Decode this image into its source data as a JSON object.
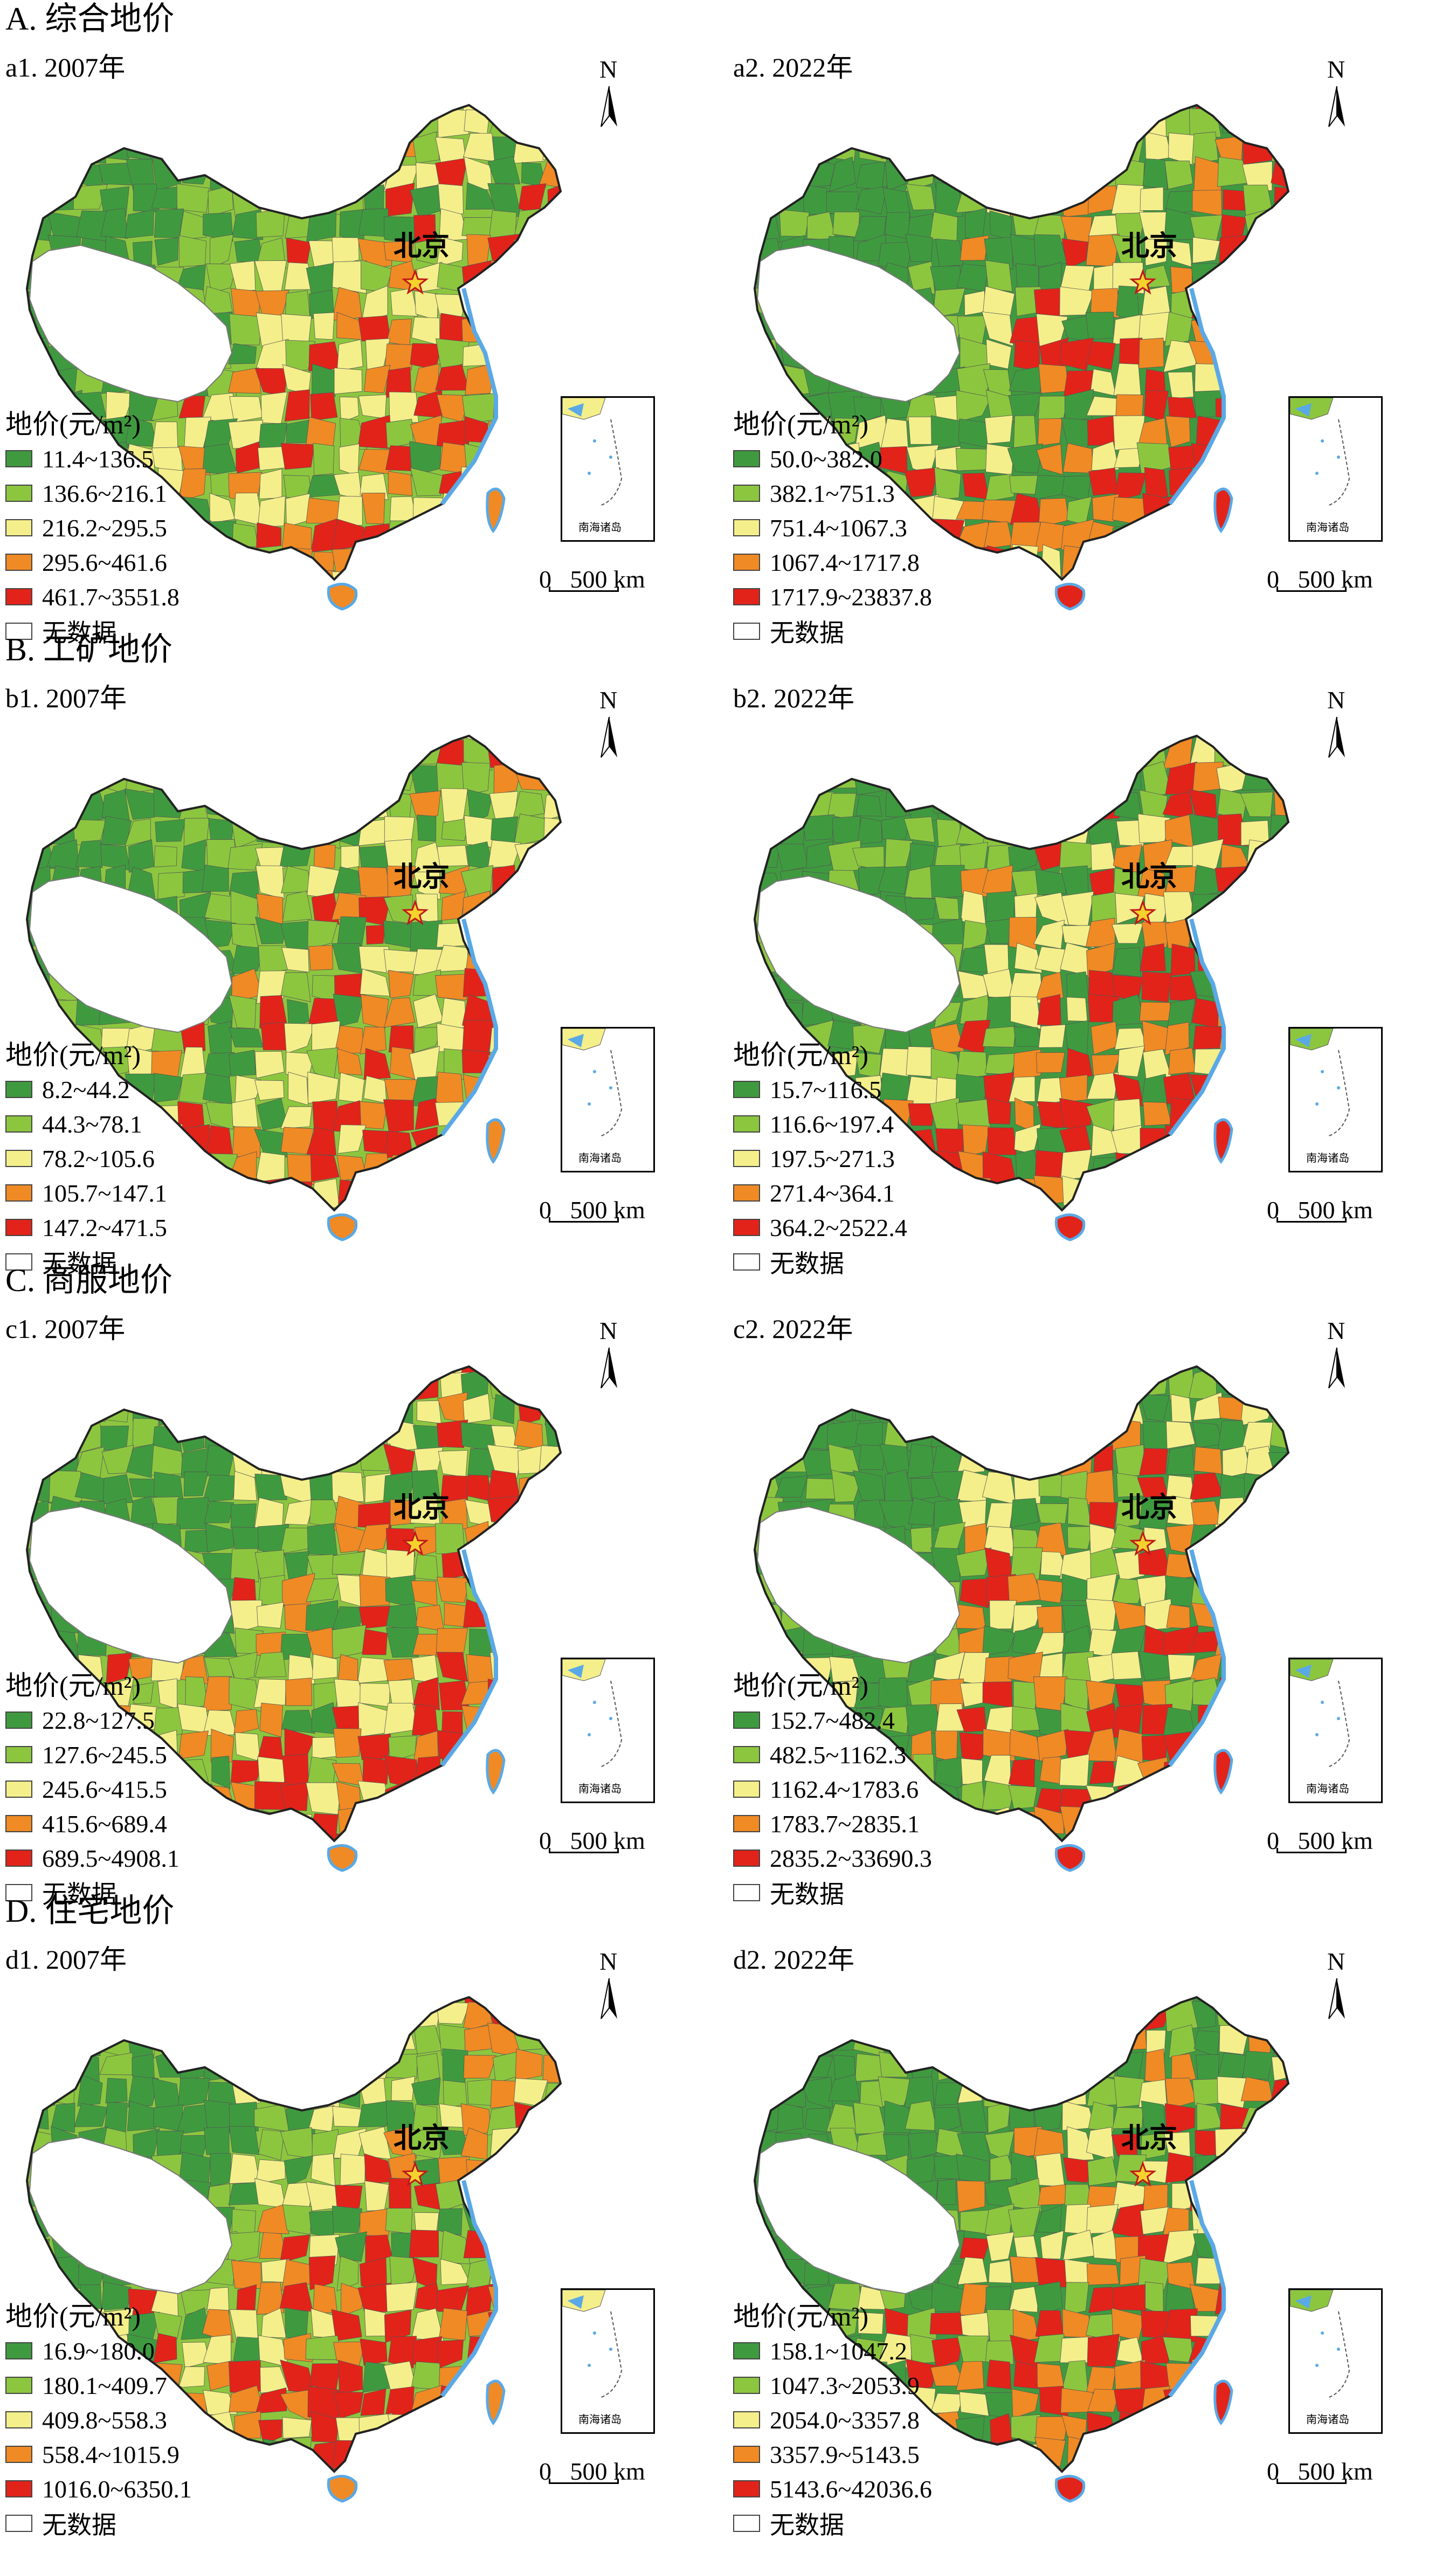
{
  "colors": {
    "class1": "#3f9a3f",
    "class2": "#8cc63f",
    "class3": "#f4ef8a",
    "class4": "#f08a24",
    "class5": "#e2231a",
    "nodata": "#ffffff",
    "sea": "#5aa9e6"
  },
  "common": {
    "beijing": "北京",
    "north": "N",
    "scale": "0   500 km",
    "inset": "南海诸岛",
    "legend_title": "地价(元/m²)",
    "nodata": "无数据"
  },
  "sections": [
    {
      "title": "A. 综合地价",
      "panels": [
        {
          "label": "a1. 2007年",
          "legend": [
            "11.4~136.5",
            "136.6~216.1",
            "216.2~295.5",
            "295.6~461.6",
            "461.7~3551.8"
          ]
        },
        {
          "label": "a2. 2022年",
          "legend": [
            "50.0~382.0",
            "382.1~751.3",
            "751.4~1067.3",
            "1067.4~1717.8",
            "1717.9~23837.8"
          ]
        }
      ]
    },
    {
      "title": "B. 工矿地价",
      "panels": [
        {
          "label": "b1. 2007年",
          "legend": [
            "8.2~44.2",
            "44.3~78.1",
            "78.2~105.6",
            "105.7~147.1",
            "147.2~471.5"
          ]
        },
        {
          "label": "b2. 2022年",
          "legend": [
            "15.7~116.5",
            "116.6~197.4",
            "197.5~271.3",
            "271.4~364.1",
            "364.2~2522.4"
          ]
        }
      ]
    },
    {
      "title": "C. 商服地价",
      "panels": [
        {
          "label": "c1. 2007年",
          "legend": [
            "22.8~127.5",
            "127.6~245.5",
            "245.6~415.5",
            "415.6~689.4",
            "689.5~4908.1"
          ]
        },
        {
          "label": "c2. 2022年",
          "legend": [
            "152.7~482.4",
            "482.5~1162.3",
            "1162.4~1783.6",
            "1783.7~2835.1",
            "2835.2~33690.3"
          ]
        }
      ]
    },
    {
      "title": "D. 住宅地价",
      "panels": [
        {
          "label": "d1. 2007年",
          "legend": [
            "16.9~180.0",
            "180.1~409.7",
            "409.8~558.3",
            "558.4~1015.9",
            "1016.0~6350.1"
          ]
        },
        {
          "label": "d2. 2022年",
          "legend": [
            "158.1~1047.2",
            "1047.3~2053.9",
            "2054.0~3357.8",
            "3357.9~5143.5",
            "5143.6~42036.6"
          ]
        }
      ]
    }
  ]
}
